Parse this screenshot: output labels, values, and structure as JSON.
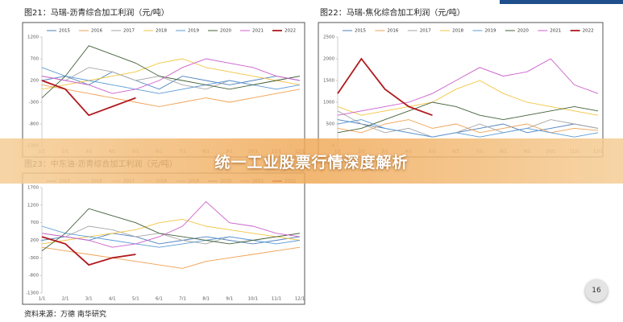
{
  "chart_data": [
    {
      "type": "line",
      "title": "图21：马瑞-沥青综合加工利润（元/吨）",
      "categories": [
        "1/1",
        "2/1",
        "3/1",
        "4/1",
        "5/1",
        "6/1",
        "7/1",
        "8/1",
        "9/1",
        "10/1",
        "11/1",
        "12/1"
      ],
      "ylim": [
        -1300,
        1200
      ],
      "yticks": [
        -1300,
        -800,
        -300,
        200,
        700,
        1200
      ],
      "series": [
        {
          "name": "2015",
          "color": "#4f81bd",
          "values": [
            200,
            300,
            100,
            400,
            200,
            0,
            300,
            200,
            100,
            200,
            300,
            200
          ]
        },
        {
          "name": "2016",
          "color": "#f0a050",
          "values": [
            100,
            0,
            -100,
            -200,
            -300,
            -400,
            -300,
            -200,
            -300,
            -200,
            -100,
            0
          ]
        },
        {
          "name": "2017",
          "color": "#a5a5a5",
          "values": [
            300,
            200,
            500,
            400,
            200,
            300,
            100,
            0,
            200,
            100,
            200,
            300
          ]
        },
        {
          "name": "2018",
          "color": "#f2c541",
          "values": [
            0,
            100,
            200,
            300,
            400,
            600,
            700,
            500,
            400,
            300,
            200,
            100
          ]
        },
        {
          "name": "2019",
          "color": "#5b9bd5",
          "values": [
            500,
            300,
            200,
            100,
            0,
            -100,
            0,
            100,
            200,
            100,
            0,
            100
          ]
        },
        {
          "name": "2020",
          "color": "#44613a",
          "values": [
            -200,
            300,
            1000,
            800,
            600,
            300,
            200,
            100,
            0,
            100,
            200,
            300
          ]
        },
        {
          "name": "2021",
          "color": "#cc5fcc",
          "values": [
            300,
            200,
            100,
            -100,
            0,
            200,
            500,
            700,
            600,
            500,
            300,
            200
          ]
        },
        {
          "name": "2022",
          "color": "#b0191e",
          "values": [
            200,
            0,
            -600,
            -400,
            -200,
            null,
            null,
            null,
            null,
            null,
            null,
            null
          ]
        }
      ]
    },
    {
      "type": "line",
      "title": "图22：马瑞-焦化综合加工利润（元/吨）",
      "categories": [
        "1/1",
        "2/1",
        "3/1",
        "4/1",
        "5/1",
        "6/1",
        "7/1",
        "8/1",
        "9/1",
        "10/1",
        "11/1",
        "12/1"
      ],
      "ylim": [
        0,
        2500
      ],
      "yticks": [
        0,
        500,
        1000,
        1500,
        2000,
        2500
      ],
      "series": [
        {
          "name": "2015",
          "color": "#4f81bd",
          "values": [
            600,
            500,
            400,
            300,
            200,
            300,
            400,
            500,
            300,
            400,
            500,
            400
          ]
        },
        {
          "name": "2016",
          "color": "#f0a050",
          "values": [
            400,
            300,
            500,
            600,
            400,
            500,
            300,
            400,
            500,
            300,
            400,
            350
          ]
        },
        {
          "name": "2017",
          "color": "#a5a5a5",
          "values": [
            800,
            500,
            300,
            400,
            200,
            300,
            500,
            300,
            400,
            600,
            500,
            400
          ]
        },
        {
          "name": "2018",
          "color": "#f2c541",
          "values": [
            900,
            700,
            800,
            900,
            1000,
            1300,
            1500,
            1200,
            1000,
            900,
            800,
            700
          ]
        },
        {
          "name": "2019",
          "color": "#5b9bd5",
          "values": [
            500,
            600,
            400,
            300,
            200,
            300,
            200,
            300,
            400,
            300,
            200,
            300
          ]
        },
        {
          "name": "2020",
          "color": "#44613a",
          "values": [
            300,
            400,
            600,
            800,
            1000,
            900,
            700,
            600,
            700,
            800,
            900,
            800
          ]
        },
        {
          "name": "2021",
          "color": "#cc5fcc",
          "values": [
            700,
            800,
            900,
            1000,
            1200,
            1500,
            1800,
            1600,
            1700,
            2000,
            1400,
            1200
          ]
        },
        {
          "name": "2022",
          "color": "#b0191e",
          "values": [
            1200,
            2000,
            1300,
            900,
            700,
            null,
            null,
            null,
            null,
            null,
            null,
            null
          ]
        }
      ]
    },
    {
      "type": "line",
      "title": "图23：中东油-沥青综合加工利润（元/吨）",
      "categories": [
        "1/1",
        "2/1",
        "3/1",
        "4/1",
        "5/1",
        "6/1",
        "7/1",
        "8/1",
        "9/1",
        "10/1",
        "11/1",
        "12/1"
      ],
      "ylim": [
        -1300,
        1700
      ],
      "yticks": [
        -1300,
        -800,
        -300,
        200,
        700,
        1200,
        1700
      ],
      "series": [
        {
          "name": "2015",
          "color": "#4f81bd",
          "values": [
            200,
            300,
            200,
            400,
            300,
            100,
            200,
            300,
            200,
            100,
            200,
            300
          ]
        },
        {
          "name": "2016",
          "color": "#f0a050",
          "values": [
            0,
            -100,
            -200,
            -300,
            -400,
            -500,
            -600,
            -400,
            -300,
            -200,
            -100,
            0
          ]
        },
        {
          "name": "2017",
          "color": "#a5a5a5",
          "values": [
            400,
            300,
            600,
            500,
            300,
            400,
            200,
            100,
            300,
            200,
            300,
            400
          ]
        },
        {
          "name": "2018",
          "color": "#f2c541",
          "values": [
            100,
            200,
            300,
            400,
            500,
            700,
            800,
            600,
            500,
            400,
            300,
            200
          ]
        },
        {
          "name": "2019",
          "color": "#5b9bd5",
          "values": [
            600,
            400,
            300,
            200,
            100,
            0,
            100,
            200,
            300,
            200,
            100,
            200
          ]
        },
        {
          "name": "2020",
          "color": "#44613a",
          "values": [
            -100,
            400,
            1100,
            900,
            700,
            400,
            300,
            200,
            100,
            200,
            300,
            400
          ]
        },
        {
          "name": "2021",
          "color": "#cc5fcc",
          "values": [
            400,
            300,
            200,
            0,
            100,
            300,
            600,
            1300,
            700,
            600,
            400,
            300
          ]
        },
        {
          "name": "2022",
          "color": "#b0191e",
          "values": [
            300,
            100,
            -500,
            -300,
            -200,
            null,
            null,
            null,
            null,
            null,
            null,
            null
          ]
        }
      ]
    }
  ],
  "banner": "统一工业股票行情深度解析",
  "source": "资料来源：万德 南华研究",
  "page_number": "16"
}
